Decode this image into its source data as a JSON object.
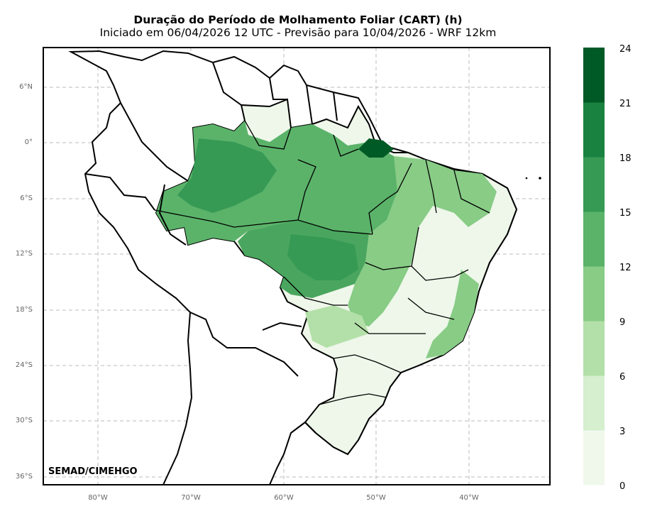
{
  "title": "Duração do Período de Molhamento Foliar (CART) (h)",
  "subtitle": "Iniciado em 06/04/2026 12 UTC - Previsão para 10/04/2026 - WRF 12km",
  "credit": "SEMAD/CIMEHGO",
  "lat_labels": [
    "6°N",
    "0°",
    "6°S",
    "12°S",
    "18°S",
    "24°S",
    "30°S",
    "36°S"
  ],
  "lon_labels": [
    "80°W",
    "70°W",
    "60°W",
    "50°W",
    "40°W"
  ],
  "colorbar": {
    "ticks": [
      "0",
      "3",
      "6",
      "9",
      "12",
      "15",
      "18",
      "21",
      "24"
    ],
    "colors": [
      "#f0f8ec",
      "#d5efcf",
      "#b3e0a8",
      "#88cc86",
      "#5bb36a",
      "#369a55",
      "#1a8240",
      "#005a26"
    ]
  },
  "legend_colors": {
    "land": "#ffffff",
    "border": "#000000",
    "grid": "#bbbbbb"
  }
}
